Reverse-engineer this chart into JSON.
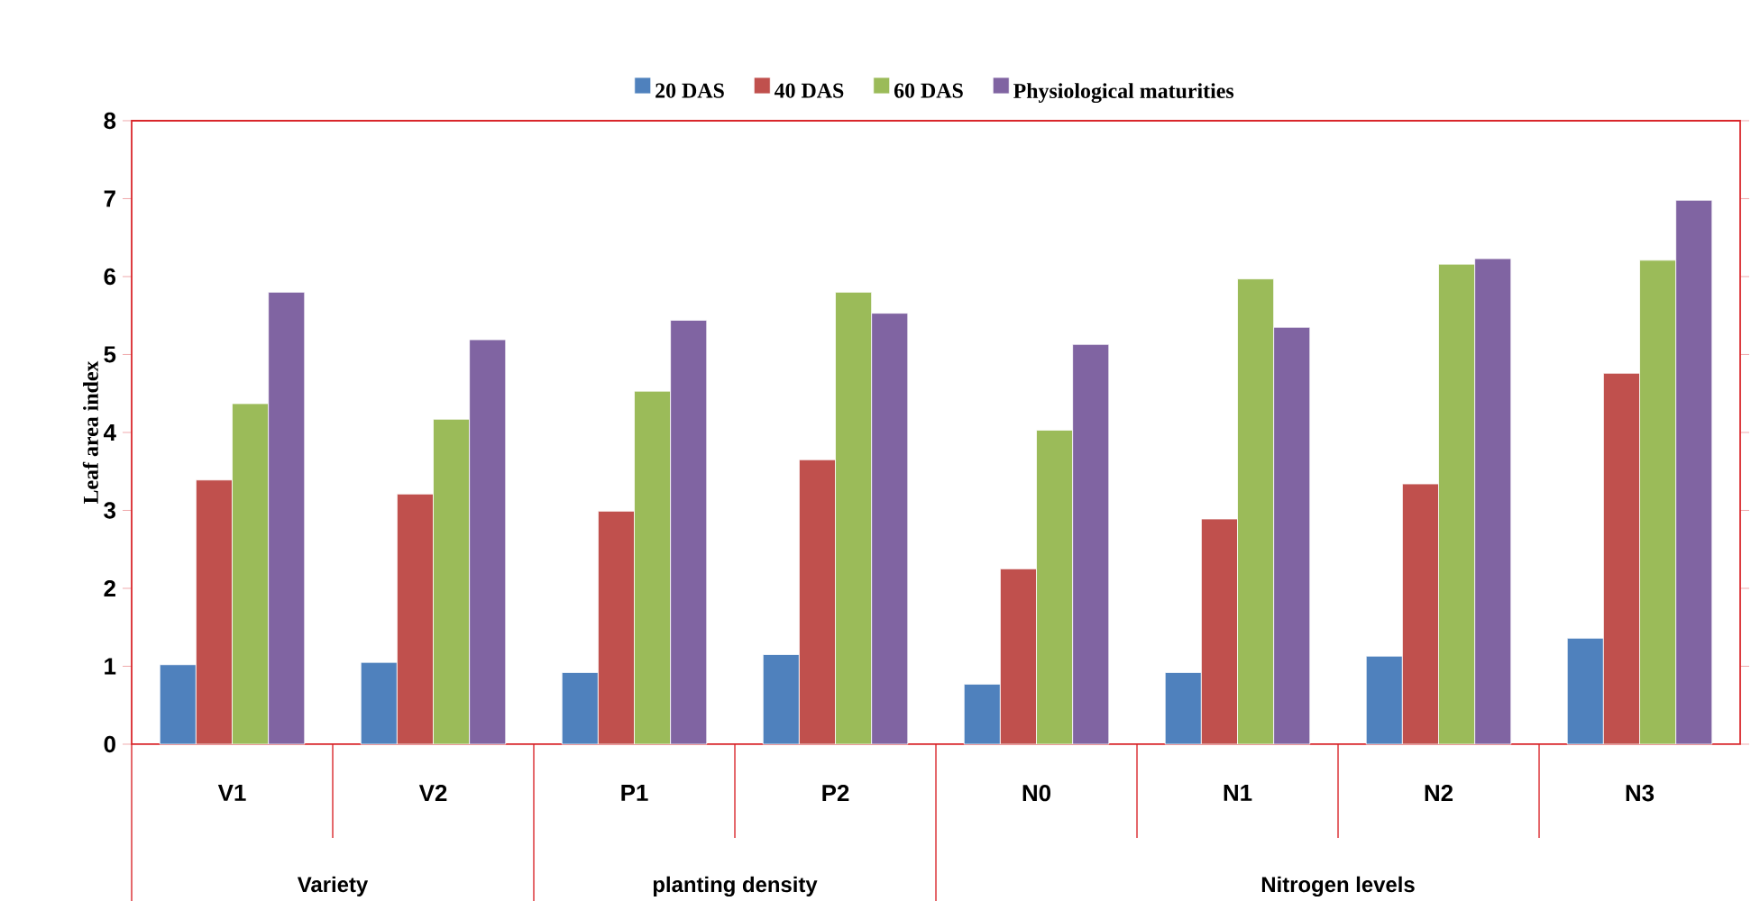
{
  "chart_data": {
    "type": "bar",
    "ylabel": "Leaf area index",
    "categories": [
      "V1",
      "V2",
      "P1",
      "P2",
      "N0",
      "N1",
      "N2",
      "N3"
    ],
    "series": [
      {
        "name": "20 DAS",
        "color": "#4f81bd",
        "values": [
          1.02,
          1.05,
          0.92,
          1.15,
          0.77,
          0.92,
          1.13,
          1.36
        ]
      },
      {
        "name": "40 DAS",
        "color": "#c0504d",
        "values": [
          3.39,
          3.21,
          2.99,
          3.65,
          2.25,
          2.89,
          3.34,
          4.76
        ]
      },
      {
        "name": "60 DAS",
        "color": "#9bbb59",
        "values": [
          4.37,
          4.17,
          4.53,
          5.8,
          4.03,
          5.97,
          6.16,
          6.21
        ]
      },
      {
        "name": "Physiological maturities",
        "color": "#8064a2",
        "values": [
          5.8,
          5.19,
          5.44,
          5.53,
          5.13,
          5.35,
          6.23,
          6.98
        ]
      }
    ],
    "ylim": [
      0,
      8
    ],
    "yticks": [
      0,
      1,
      2,
      3,
      4,
      5,
      6,
      7,
      8
    ],
    "grid": false,
    "legend": "top",
    "annotations": [
      "Variety",
      "planting density",
      "Nitrogen levels"
    ]
  }
}
